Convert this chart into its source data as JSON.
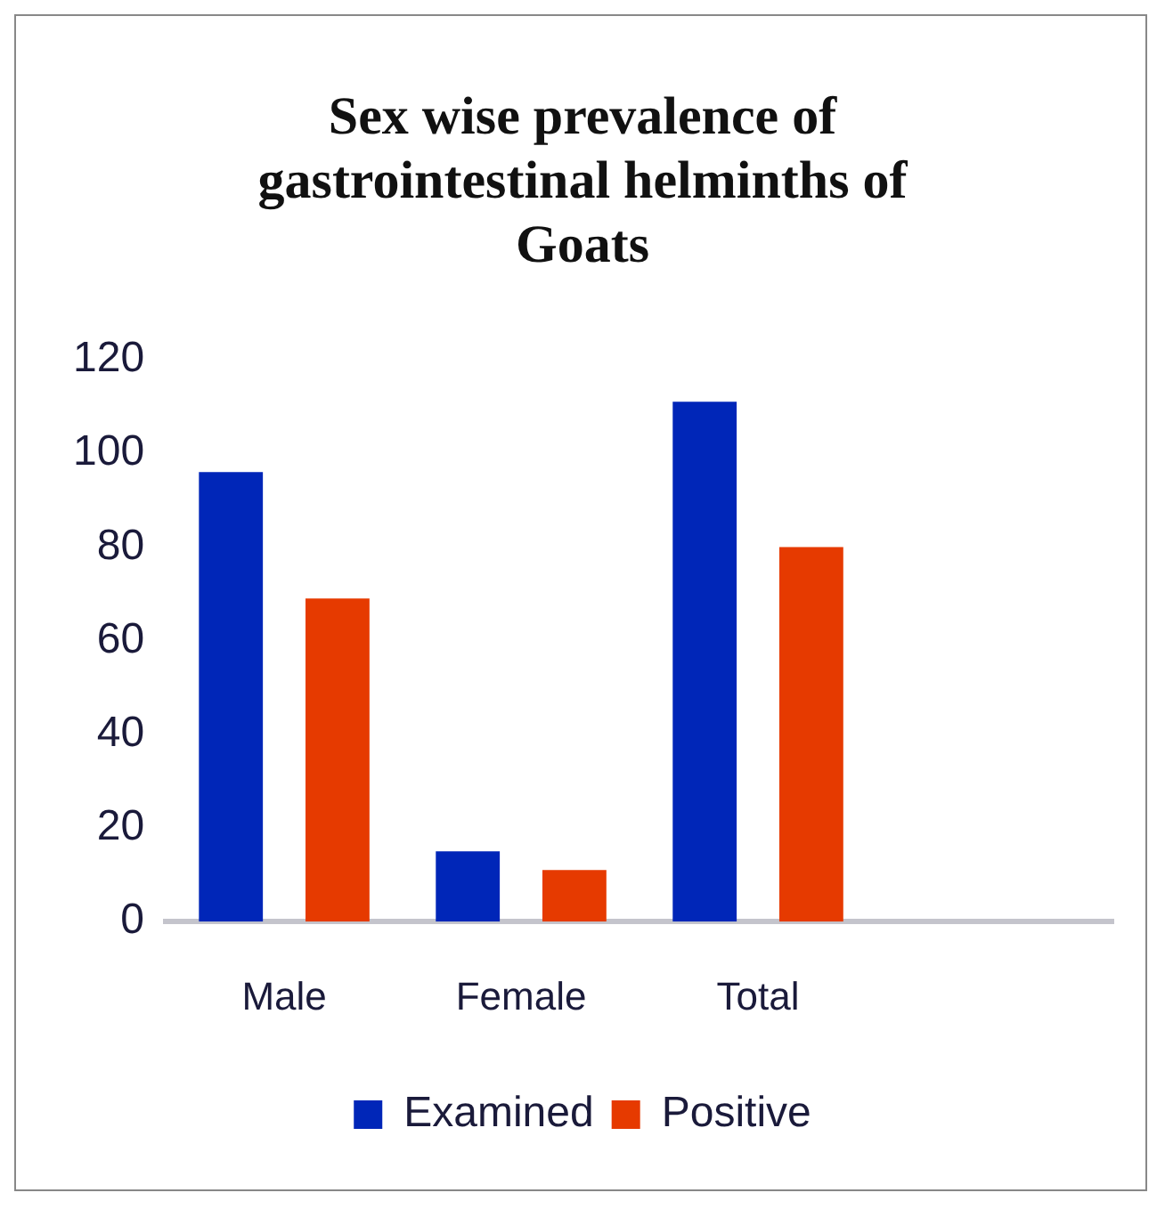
{
  "chart_data": {
    "type": "bar",
    "title": "Sex wise prevalence of gastrointestinal helminths of Goats",
    "categories": [
      "Male",
      "Female",
      "Total",
      null
    ],
    "series": [
      {
        "name": "Examined",
        "color": "#0026b8",
        "values": [
          96,
          15,
          111,
          null
        ]
      },
      {
        "name": "Positive",
        "color": "#e63a00",
        "values": [
          69,
          11,
          80,
          null
        ]
      }
    ],
    "ylim": [
      0,
      120
    ],
    "yticks": [
      0,
      20,
      40,
      60,
      80,
      100,
      120
    ],
    "grid": false,
    "legend": "bottom"
  }
}
